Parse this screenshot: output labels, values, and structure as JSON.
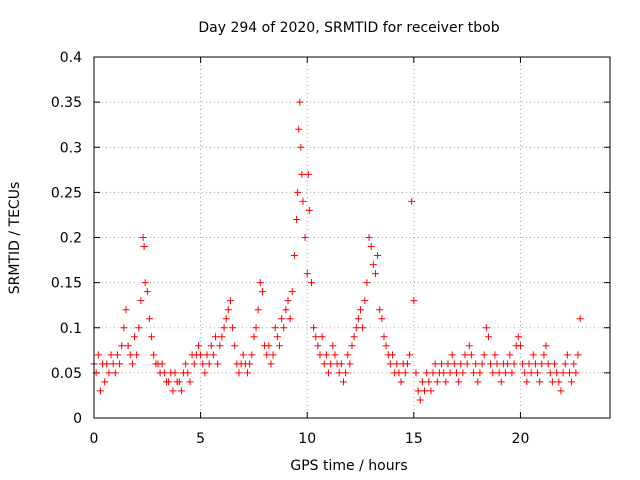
{
  "chart_data": {
    "type": "scatter",
    "title": "Day 294 of 2020, SRMTID for receiver tbob",
    "xlabel": "GPS time / hours",
    "ylabel": "SRMTID / TECUs",
    "xlim": [
      0,
      24.2
    ],
    "ylim": [
      0,
      0.4
    ],
    "grid": true,
    "marker": "+",
    "marker_color": "#ff0000",
    "xticks": [
      0,
      5,
      10,
      15,
      20
    ],
    "xtick_labels": [
      "0",
      "5",
      "10",
      "15",
      "20"
    ],
    "yticks": [
      0,
      0.05,
      0.1,
      0.15,
      0.2,
      0.25,
      0.3,
      0.35,
      0.4
    ],
    "ytick_labels": [
      "0",
      "0.05",
      "0.1",
      "0.15",
      "0.2",
      "0.25",
      "0.3",
      "0.35",
      "0.4"
    ],
    "series": [
      {
        "name": "SRMTID",
        "x": [
          0.0,
          0.1,
          0.2,
          0.3,
          0.4,
          0.5,
          0.6,
          0.7,
          0.8,
          0.9,
          1.0,
          1.1,
          1.2,
          1.3,
          1.4,
          1.5,
          1.6,
          1.7,
          1.8,
          1.9,
          2.0,
          2.1,
          2.2,
          2.3,
          2.35,
          2.4,
          2.5,
          2.6,
          2.7,
          2.8,
          2.9,
          3.0,
          3.1,
          3.2,
          3.3,
          3.4,
          3.5,
          3.6,
          3.7,
          3.8,
          3.9,
          4.0,
          4.1,
          4.2,
          4.3,
          4.4,
          4.5,
          4.6,
          4.7,
          4.8,
          4.9,
          5.0,
          5.1,
          5.2,
          5.3,
          5.4,
          5.5,
          5.6,
          5.7,
          5.8,
          5.9,
          6.0,
          6.1,
          6.2,
          6.3,
          6.4,
          6.5,
          6.6,
          6.7,
          6.8,
          6.9,
          7.0,
          7.1,
          7.2,
          7.3,
          7.4,
          7.5,
          7.6,
          7.7,
          7.8,
          7.9,
          8.0,
          8.1,
          8.2,
          8.3,
          8.4,
          8.5,
          8.6,
          8.7,
          8.8,
          8.9,
          9.0,
          9.1,
          9.2,
          9.3,
          9.4,
          9.5,
          9.55,
          9.6,
          9.65,
          9.7,
          9.75,
          9.8,
          9.9,
          10.0,
          10.05,
          10.1,
          10.2,
          10.3,
          10.4,
          10.5,
          10.6,
          10.7,
          10.8,
          10.9,
          11.0,
          11.1,
          11.2,
          11.3,
          11.4,
          11.5,
          11.6,
          11.7,
          11.8,
          11.9,
          12.0,
          12.1,
          12.2,
          12.3,
          12.4,
          12.5,
          12.6,
          12.7,
          12.8,
          12.9,
          13.0,
          13.1,
          13.2,
          13.3,
          13.4,
          13.5,
          13.6,
          13.7,
          13.8,
          13.9,
          14.0,
          14.1,
          14.2,
          14.3,
          14.4,
          14.5,
          14.6,
          14.7,
          14.8,
          14.9,
          15.0,
          15.1,
          15.2,
          15.3,
          15.4,
          15.5,
          15.6,
          15.7,
          15.8,
          15.9,
          16.0,
          16.1,
          16.2,
          16.3,
          16.4,
          16.5,
          16.6,
          16.7,
          16.8,
          16.9,
          17.0,
          17.1,
          17.2,
          17.3,
          17.4,
          17.5,
          17.6,
          17.7,
          17.8,
          17.9,
          18.0,
          18.1,
          18.2,
          18.3,
          18.4,
          18.5,
          18.6,
          18.7,
          18.8,
          18.9,
          19.0,
          19.1,
          19.2,
          19.3,
          19.4,
          19.5,
          19.6,
          19.7,
          19.8,
          19.9,
          20.0,
          20.1,
          20.2,
          20.3,
          20.4,
          20.5,
          20.6,
          20.7,
          20.8,
          20.9,
          21.0,
          21.1,
          21.2,
          21.3,
          21.4,
          21.5,
          21.6,
          21.7,
          21.8,
          21.9,
          22.0,
          22.1,
          22.2,
          22.3,
          22.4,
          22.5,
          22.6,
          22.7,
          22.8
        ],
        "y": [
          0.06,
          0.05,
          0.07,
          0.03,
          0.06,
          0.04,
          0.06,
          0.05,
          0.07,
          0.06,
          0.05,
          0.07,
          0.06,
          0.08,
          0.1,
          0.12,
          0.08,
          0.07,
          0.06,
          0.09,
          0.07,
          0.1,
          0.13,
          0.2,
          0.19,
          0.15,
          0.14,
          0.11,
          0.09,
          0.07,
          0.06,
          0.06,
          0.05,
          0.06,
          0.05,
          0.04,
          0.04,
          0.05,
          0.03,
          0.05,
          0.04,
          0.04,
          0.03,
          0.05,
          0.06,
          0.05,
          0.04,
          0.07,
          0.06,
          0.07,
          0.08,
          0.07,
          0.06,
          0.05,
          0.07,
          0.06,
          0.08,
          0.07,
          0.09,
          0.06,
          0.08,
          0.09,
          0.1,
          0.11,
          0.12,
          0.13,
          0.1,
          0.08,
          0.06,
          0.05,
          0.06,
          0.07,
          0.06,
          0.05,
          0.06,
          0.07,
          0.09,
          0.1,
          0.12,
          0.15,
          0.14,
          0.08,
          0.07,
          0.08,
          0.06,
          0.07,
          0.1,
          0.09,
          0.08,
          0.11,
          0.1,
          0.12,
          0.13,
          0.11,
          0.14,
          0.18,
          0.22,
          0.25,
          0.32,
          0.35,
          0.3,
          0.27,
          0.24,
          0.2,
          0.16,
          0.27,
          0.23,
          0.15,
          0.1,
          0.09,
          0.08,
          0.07,
          0.09,
          0.06,
          0.07,
          0.05,
          0.06,
          0.08,
          0.07,
          0.06,
          0.05,
          0.06,
          0.04,
          0.05,
          0.07,
          0.06,
          0.08,
          0.09,
          0.1,
          0.11,
          0.12,
          0.1,
          0.13,
          0.15,
          0.2,
          0.19,
          0.17,
          0.16,
          0.18,
          0.12,
          0.11,
          0.09,
          0.08,
          0.07,
          0.06,
          0.07,
          0.05,
          0.06,
          0.05,
          0.04,
          0.06,
          0.05,
          0.06,
          0.07,
          0.24,
          0.13,
          0.05,
          0.03,
          0.02,
          0.04,
          0.03,
          0.05,
          0.04,
          0.03,
          0.05,
          0.06,
          0.04,
          0.05,
          0.06,
          0.05,
          0.04,
          0.06,
          0.05,
          0.07,
          0.06,
          0.05,
          0.04,
          0.06,
          0.05,
          0.07,
          0.06,
          0.08,
          0.07,
          0.05,
          0.06,
          0.04,
          0.05,
          0.06,
          0.07,
          0.1,
          0.09,
          0.06,
          0.05,
          0.07,
          0.06,
          0.05,
          0.04,
          0.06,
          0.05,
          0.06,
          0.07,
          0.05,
          0.06,
          0.08,
          0.09,
          0.08,
          0.06,
          0.05,
          0.04,
          0.06,
          0.05,
          0.07,
          0.06,
          0.05,
          0.04,
          0.06,
          0.07,
          0.08,
          0.06,
          0.05,
          0.04,
          0.06,
          0.05,
          0.04,
          0.03,
          0.05,
          0.06,
          0.07,
          0.05,
          0.04,
          0.06,
          0.05,
          0.07,
          0.11
        ]
      }
    ]
  }
}
